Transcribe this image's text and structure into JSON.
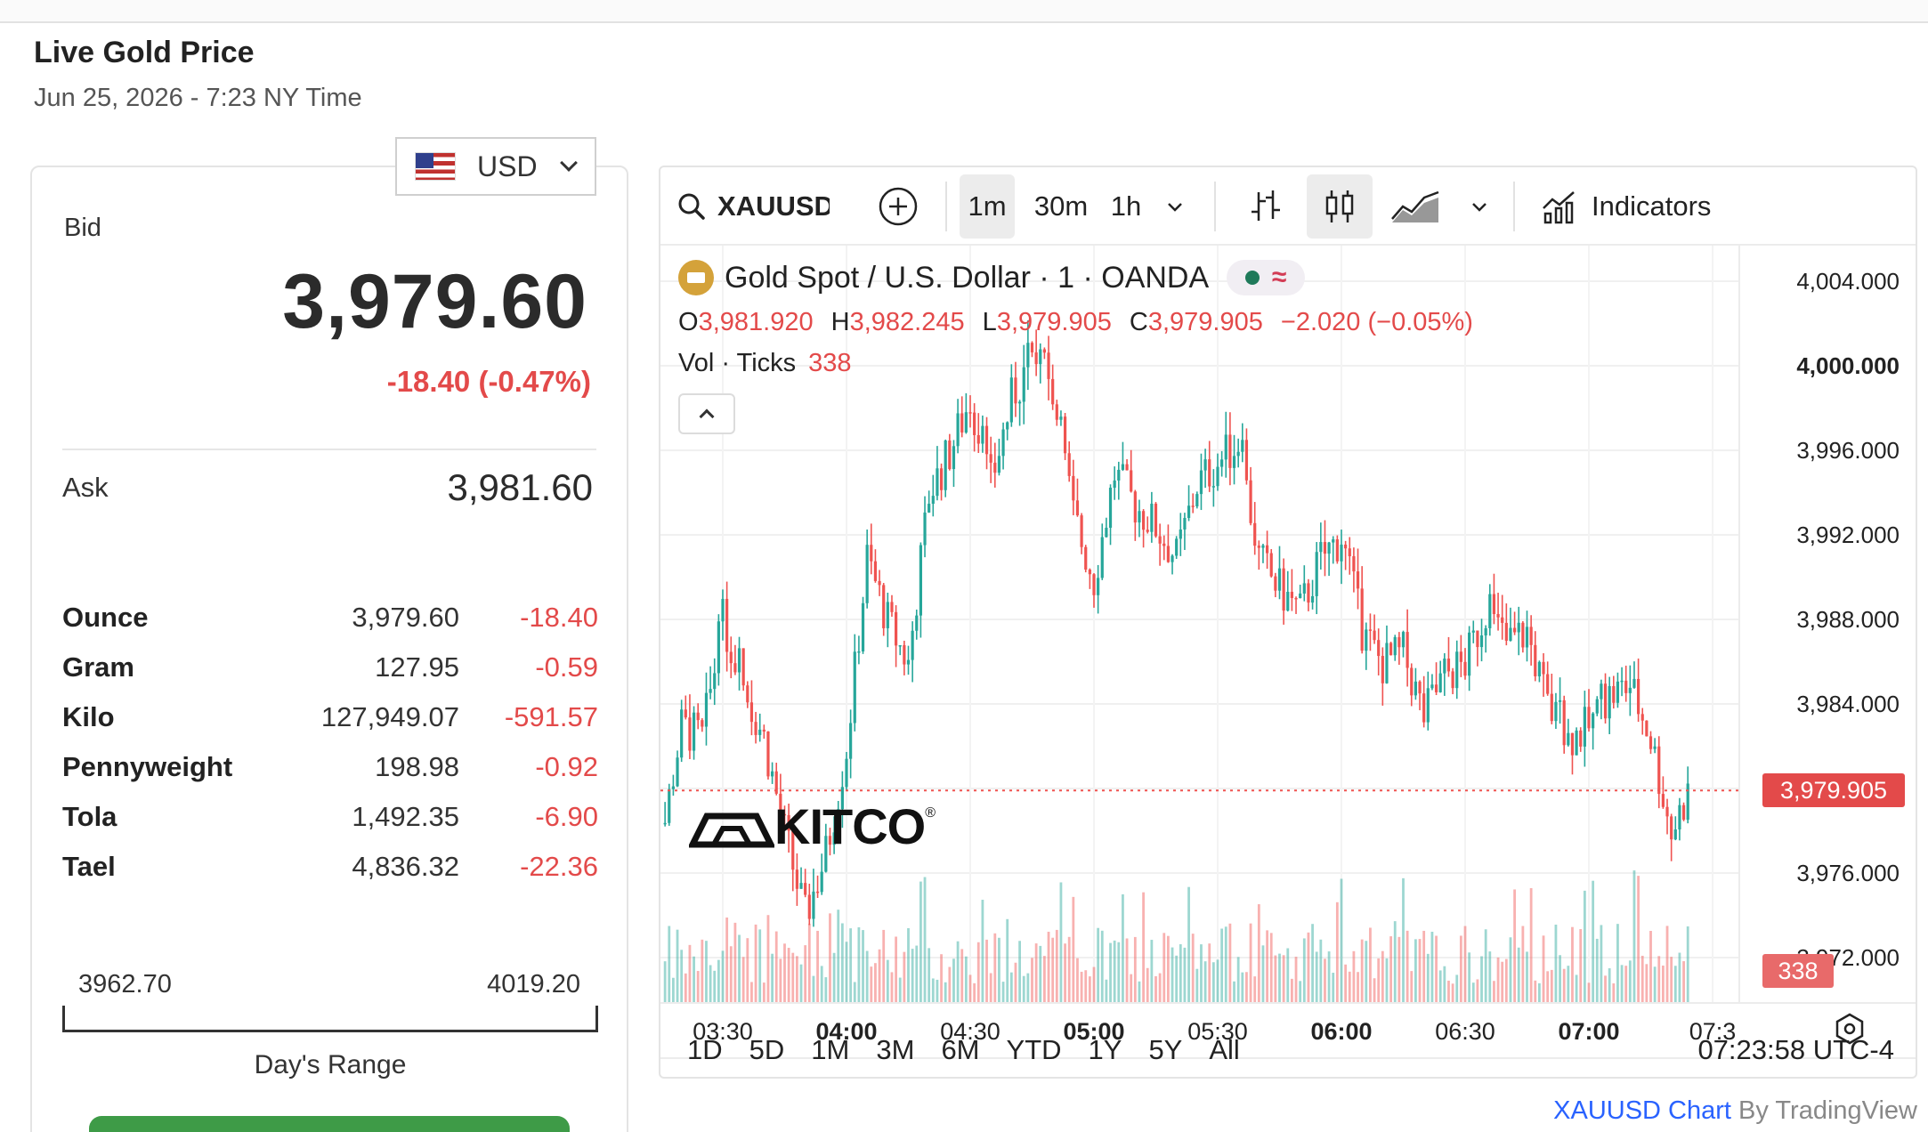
{
  "page": {
    "title": "Live Gold Price",
    "subtitle": "Jun 25, 2026 - 7:23 NY Time"
  },
  "currency": {
    "selected": "USD",
    "flag_icon": "us-flag-icon"
  },
  "bid": {
    "label": "Bid",
    "value": "3,979.60",
    "change": "-18.40 (-0.47%)"
  },
  "ask": {
    "label": "Ask",
    "value": "3,981.60"
  },
  "units": [
    {
      "name": "Ounce",
      "price": "3,979.60",
      "change": "-18.40"
    },
    {
      "name": "Gram",
      "price": "127.95",
      "change": "-0.59"
    },
    {
      "name": "Kilo",
      "price": "127,949.07",
      "change": "-591.57"
    },
    {
      "name": "Pennyweight",
      "price": "198.98",
      "change": "-0.92"
    },
    {
      "name": "Tola",
      "price": "1,492.35",
      "change": "-6.90"
    },
    {
      "name": "Tael",
      "price": "4,836.32",
      "change": "-22.36"
    }
  ],
  "range": {
    "low": "3962.70",
    "high": "4019.20",
    "label": "Day's Range"
  },
  "toolbar": {
    "symbol": "XAUUSD",
    "intervals": [
      "1m",
      "30m",
      "1h"
    ],
    "active_interval": "1m",
    "indicators_label": "Indicators"
  },
  "chart_legend": {
    "title": "Gold Spot / U.S. Dollar · 1 · OANDA",
    "o_label": "O",
    "o_value": "3,981.920",
    "h_label": "H",
    "h_value": "3,982.245",
    "l_label": "L",
    "l_value": "3,979.905",
    "c_label": "C",
    "c_value": "3,979.905",
    "change": "−2.020 (−0.05%)",
    "vol_label": "Vol · Ticks",
    "vol_value": "338"
  },
  "watermark": "KITCO",
  "price_tag": "3,979.905",
  "vol_tag": "338",
  "y_axis": [
    "4,004.000",
    "4,000.000",
    "3,996.000",
    "3,992.000",
    "3,988.000",
    "3,984.000",
    "3,980.000",
    "3,976.000",
    "3,972.000"
  ],
  "x_axis": [
    {
      "label": "03:30",
      "bold": false
    },
    {
      "label": "04:00",
      "bold": true
    },
    {
      "label": "04:30",
      "bold": false
    },
    {
      "label": "05:00",
      "bold": true
    },
    {
      "label": "05:30",
      "bold": false
    },
    {
      "label": "06:00",
      "bold": true
    },
    {
      "label": "06:30",
      "bold": false
    },
    {
      "label": "07:00",
      "bold": true
    },
    {
      "label": "07:3",
      "bold": false
    }
  ],
  "ranges": [
    "1D",
    "5D",
    "1M",
    "3M",
    "6M",
    "YTD",
    "1Y",
    "5Y",
    "All"
  ],
  "clock": "07:23:58 UTC-4",
  "footer": {
    "link": "XAUUSD Chart",
    "by": "By TradingView"
  },
  "colors": {
    "up": "#26a69a",
    "down": "#ef5350",
    "accent_red": "#e34a4a"
  },
  "chart_data": {
    "type": "candlestick",
    "x_start": "03:15",
    "x_end": "07:24",
    "interval": "1m",
    "ylim": [
      3970,
      4006
    ],
    "last_price": 3979.905,
    "keypoints": [
      {
        "t": "03:15",
        "p": 3977.5
      },
      {
        "t": "03:20",
        "p": 3983.0
      },
      {
        "t": "03:25",
        "p": 3982.5
      },
      {
        "t": "03:30",
        "p": 3988.0
      },
      {
        "t": "03:35",
        "p": 3985.0
      },
      {
        "t": "03:40",
        "p": 3982.5
      },
      {
        "t": "03:45",
        "p": 3978.0
      },
      {
        "t": "03:50",
        "p": 3974.0
      },
      {
        "t": "03:55",
        "p": 3977.0
      },
      {
        "t": "04:00",
        "p": 3982.0
      },
      {
        "t": "04:05",
        "p": 3991.0
      },
      {
        "t": "04:10",
        "p": 3988.0
      },
      {
        "t": "04:15",
        "p": 3986.0
      },
      {
        "t": "04:20",
        "p": 3994.0
      },
      {
        "t": "04:25",
        "p": 3996.0
      },
      {
        "t": "04:30",
        "p": 3998.5
      },
      {
        "t": "04:35",
        "p": 3994.5
      },
      {
        "t": "04:40",
        "p": 3998.5
      },
      {
        "t": "04:45",
        "p": 4000.5
      },
      {
        "t": "04:50",
        "p": 3999.0
      },
      {
        "t": "04:55",
        "p": 3993.0
      },
      {
        "t": "05:00",
        "p": 3990.0
      },
      {
        "t": "05:05",
        "p": 3995.0
      },
      {
        "t": "05:10",
        "p": 3993.5
      },
      {
        "t": "05:15",
        "p": 3992.5
      },
      {
        "t": "05:20",
        "p": 3991.0
      },
      {
        "t": "05:25",
        "p": 3994.5
      },
      {
        "t": "05:30",
        "p": 3995.5
      },
      {
        "t": "05:35",
        "p": 3996.5
      },
      {
        "t": "05:40",
        "p": 3991.0
      },
      {
        "t": "05:45",
        "p": 3989.5
      },
      {
        "t": "05:50",
        "p": 3988.5
      },
      {
        "t": "05:55",
        "p": 3991.0
      },
      {
        "t": "06:00",
        "p": 3992.0
      },
      {
        "t": "06:05",
        "p": 3987.5
      },
      {
        "t": "06:10",
        "p": 3986.0
      },
      {
        "t": "06:15",
        "p": 3986.5
      },
      {
        "t": "06:20",
        "p": 3983.5
      },
      {
        "t": "06:25",
        "p": 3985.5
      },
      {
        "t": "06:30",
        "p": 3986.0
      },
      {
        "t": "06:35",
        "p": 3988.5
      },
      {
        "t": "06:40",
        "p": 3987.0
      },
      {
        "t": "06:45",
        "p": 3987.5
      },
      {
        "t": "06:50",
        "p": 3984.0
      },
      {
        "t": "06:55",
        "p": 3982.5
      },
      {
        "t": "07:00",
        "p": 3983.0
      },
      {
        "t": "07:05",
        "p": 3984.5
      },
      {
        "t": "07:10",
        "p": 3985.0
      },
      {
        "t": "07:15",
        "p": 3982.5
      },
      {
        "t": "07:20",
        "p": 3978.0
      },
      {
        "t": "07:24",
        "p": 3979.9
      }
    ]
  }
}
